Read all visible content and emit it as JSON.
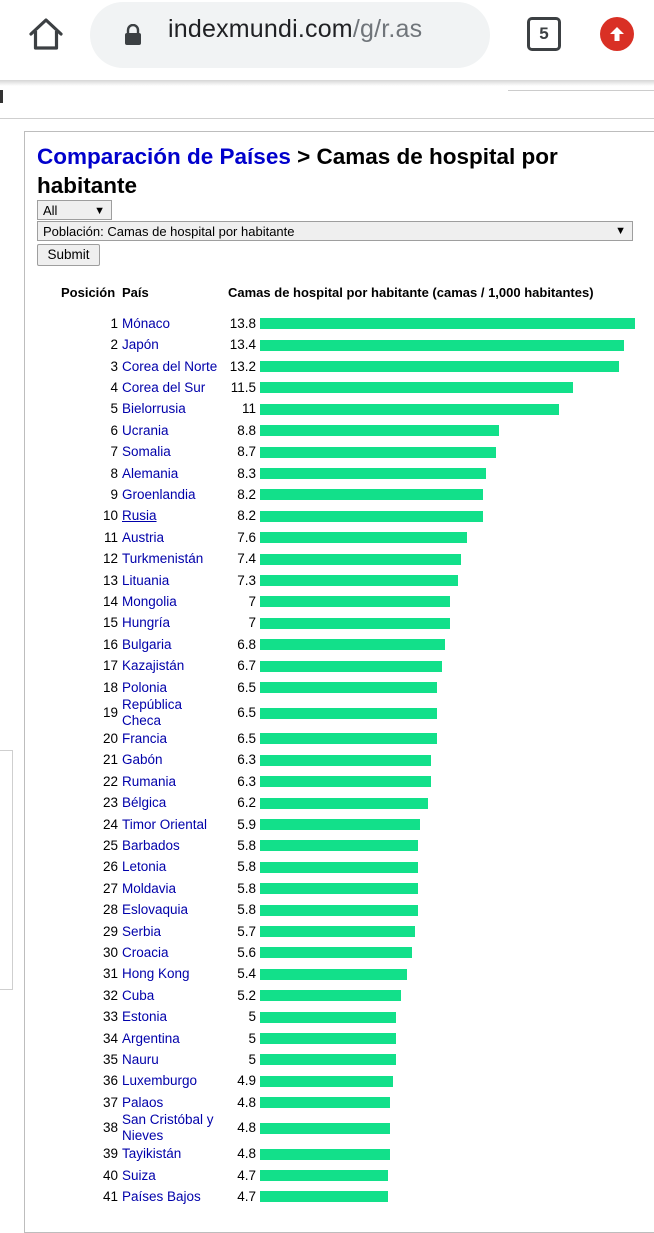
{
  "browser": {
    "url_domain": "indexmundi.com",
    "url_path": "/g/r.as",
    "tab_count": "5",
    "icons": [
      "home-icon",
      "lock-icon",
      "tab-switcher-icon",
      "update-icon"
    ]
  },
  "page": {
    "breadcrumb_link": "Comparación de Países",
    "title_rest": " > Camas de hospital por habitante",
    "region_select": "All",
    "indicator_select": "Población: Camas de hospital por habitante",
    "submit_label": "Submit",
    "col_position": "Posición",
    "col_country": "País",
    "col_value": "Camas de hospital por habitante (camas / 1,000 habitantes)",
    "bar_color": "#12e08a",
    "link_color": "#0000aa"
  },
  "chart_data": {
    "type": "bar",
    "title": "Camas de hospital por habitante",
    "ylabel": "Camas de hospital por habitante (camas / 1,000 habitantes)",
    "rows": [
      {
        "rank": "1",
        "country": "Mónaco",
        "value": "13.8"
      },
      {
        "rank": "2",
        "country": "Japón",
        "value": "13.4"
      },
      {
        "rank": "3",
        "country": "Corea del Norte",
        "value": "13.2"
      },
      {
        "rank": "4",
        "country": "Corea del Sur",
        "value": "11.5"
      },
      {
        "rank": "5",
        "country": "Bielorrusia",
        "value": "11"
      },
      {
        "rank": "6",
        "country": "Ucrania",
        "value": "8.8"
      },
      {
        "rank": "7",
        "country": "Somalia",
        "value": "8.7"
      },
      {
        "rank": "8",
        "country": "Alemania",
        "value": "8.3"
      },
      {
        "rank": "9",
        "country": "Groenlandia",
        "value": "8.2"
      },
      {
        "rank": "10",
        "country": "Rusia",
        "value": "8.2",
        "underline": true
      },
      {
        "rank": "11",
        "country": "Austria",
        "value": "7.6"
      },
      {
        "rank": "12",
        "country": "Turkmenistán",
        "value": "7.4"
      },
      {
        "rank": "13",
        "country": "Lituania",
        "value": "7.3"
      },
      {
        "rank": "14",
        "country": "Mongolia",
        "value": "7"
      },
      {
        "rank": "15",
        "country": "Hungría",
        "value": "7"
      },
      {
        "rank": "16",
        "country": "Bulgaria",
        "value": "6.8"
      },
      {
        "rank": "17",
        "country": "Kazajistán",
        "value": "6.7"
      },
      {
        "rank": "18",
        "country": "Polonia",
        "value": "6.5"
      },
      {
        "rank": "19",
        "country": "República Checa",
        "country_lines": [
          "República",
          "Checa"
        ],
        "value": "6.5"
      },
      {
        "rank": "20",
        "country": "Francia",
        "value": "6.5"
      },
      {
        "rank": "21",
        "country": "Gabón",
        "value": "6.3"
      },
      {
        "rank": "22",
        "country": "Rumania",
        "value": "6.3"
      },
      {
        "rank": "23",
        "country": "Bélgica",
        "value": "6.2"
      },
      {
        "rank": "24",
        "country": "Timor Oriental",
        "value": "5.9"
      },
      {
        "rank": "25",
        "country": "Barbados",
        "value": "5.8"
      },
      {
        "rank": "26",
        "country": "Letonia",
        "value": "5.8"
      },
      {
        "rank": "27",
        "country": "Moldavia",
        "value": "5.8"
      },
      {
        "rank": "28",
        "country": "Eslovaquia",
        "value": "5.8"
      },
      {
        "rank": "29",
        "country": "Serbia",
        "value": "5.7"
      },
      {
        "rank": "30",
        "country": "Croacia",
        "value": "5.6"
      },
      {
        "rank": "31",
        "country": "Hong Kong",
        "value": "5.4"
      },
      {
        "rank": "32",
        "country": "Cuba",
        "value": "5.2"
      },
      {
        "rank": "33",
        "country": "Estonia",
        "value": "5"
      },
      {
        "rank": "34",
        "country": "Argentina",
        "value": "5"
      },
      {
        "rank": "35",
        "country": "Nauru",
        "value": "5"
      },
      {
        "rank": "36",
        "country": "Luxemburgo",
        "value": "4.9"
      },
      {
        "rank": "37",
        "country": "Palaos",
        "value": "4.8"
      },
      {
        "rank": "38",
        "country": "San Cristóbal y Nieves",
        "country_lines": [
          "San Cristóbal y",
          "Nieves"
        ],
        "value": "4.8"
      },
      {
        "rank": "39",
        "country": "Tayikistán",
        "value": "4.8"
      },
      {
        "rank": "40",
        "country": "Suiza",
        "value": "4.7"
      },
      {
        "rank": "41",
        "country": "Países Bajos",
        "value": "4.7"
      }
    ]
  }
}
